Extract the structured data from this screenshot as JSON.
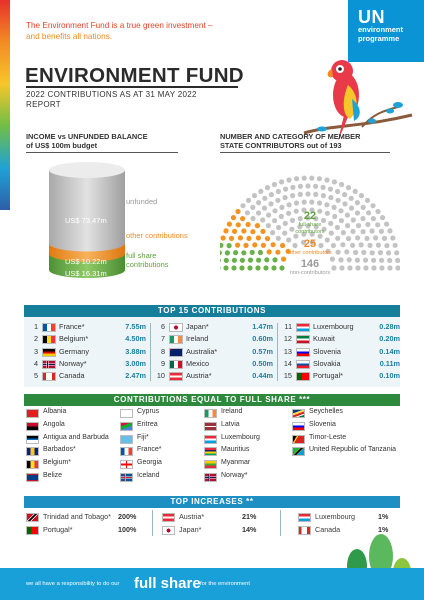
{
  "tagline": {
    "line1": "The Environment Fund is a true green investment –",
    "line2": "and benefits all nations."
  },
  "logo": {
    "un": "UN",
    "line1": "environment",
    "line2": "programme"
  },
  "title": "ENVIRONMENT FUND",
  "subtitle": {
    "line1": "2022 CONTRIBUTIONS AS AT 31 MAY 2022",
    "line2": "REPORT"
  },
  "income_chart": {
    "heading_line1": "INCOME vs UNFUNDED BALANCE",
    "heading_line2": "of US$ 100m budget",
    "unfunded_label": "unfunded",
    "other_label": "other contributions",
    "fullshare_label": "full share contributions",
    "unfunded_value": "US$ 73.47m",
    "other_value": "US$ 10.22m",
    "fullshare_value": "US$ 16.31m",
    "colors": {
      "unfunded": "#bdbdbd",
      "other": "#f39321",
      "fullshare": "#6ab04c"
    }
  },
  "member_chart": {
    "heading_line1": "NUMBER AND CATEGORY OF MEMBER",
    "heading_line2": "STATE CONTRIBUTORS out of 193",
    "fullshare_count": "22",
    "fullshare_label": "full share contributors",
    "other_count": "25",
    "other_label": "other contributors",
    "non_count": "146",
    "non_label": "non-contributors"
  },
  "chart_data": [
    {
      "type": "bar",
      "title": "INCOME vs UNFUNDED BALANCE of US$ 100m budget",
      "categories": [
        "unfunded",
        "other contributions",
        "full share contributions"
      ],
      "values": [
        73.47,
        10.22,
        16.31
      ],
      "unit": "US$ m"
    },
    {
      "type": "pie",
      "title": "NUMBER AND CATEGORY OF MEMBER STATE CONTRIBUTORS out of 193",
      "categories": [
        "full share contributors",
        "other contributors",
        "non-contributors"
      ],
      "values": [
        22,
        25,
        146
      ]
    }
  ],
  "top15": {
    "title": "TOP 15 CONTRIBUTIONS",
    "items": [
      {
        "rank": "1",
        "country": "France*",
        "amount": "7.55m"
      },
      {
        "rank": "2",
        "country": "Belgium*",
        "amount": "4.50m"
      },
      {
        "rank": "3",
        "country": "Germany",
        "amount": "3.88m"
      },
      {
        "rank": "4",
        "country": "Norway*",
        "amount": "3.00m"
      },
      {
        "rank": "5",
        "country": "Canada",
        "amount": "2.47m"
      },
      {
        "rank": "6",
        "country": "Japan*",
        "amount": "1.47m"
      },
      {
        "rank": "7",
        "country": "Ireland",
        "amount": "0.60m"
      },
      {
        "rank": "8",
        "country": "Australia*",
        "amount": "0.57m"
      },
      {
        "rank": "9",
        "country": "Mexico",
        "amount": "0.50m"
      },
      {
        "rank": "10",
        "country": "Austria*",
        "amount": "0.44m"
      },
      {
        "rank": "11",
        "country": "Luxembourg",
        "amount": "0.28m"
      },
      {
        "rank": "12",
        "country": "Kuwait",
        "amount": "0.20m"
      },
      {
        "rank": "13",
        "country": "Slovenia",
        "amount": "0.14m"
      },
      {
        "rank": "14",
        "country": "Slovakia",
        "amount": "0.11m"
      },
      {
        "rank": "15",
        "country": "Portugal*",
        "amount": "0.10m"
      }
    ]
  },
  "fullshare": {
    "title": "CONTRIBUTIONS EQUAL TO FULL SHARE ***",
    "col1": [
      "Albania",
      "Angola",
      "Antigua and Barbuda",
      "Barbados*",
      "Belgium*",
      "Belize"
    ],
    "col2": [
      "Cyprus",
      "Eritrea",
      "Fiji*",
      "France*",
      "Georgia",
      "Iceland"
    ],
    "col3": [
      "Ireland",
      "Latvia",
      "Luxembourg",
      "Mauritius",
      "Myanmar",
      "Norway*"
    ],
    "col4": [
      "Seychelles",
      "Slovenia",
      "Timor-Leste",
      "United Republic of Tanzania"
    ]
  },
  "increases": {
    "title": "TOP INCREASES **",
    "items": [
      {
        "country": "Trinidad and Tobago*",
        "pct": "200%"
      },
      {
        "country": "Portugal*",
        "pct": "100%"
      },
      {
        "country": "Austria*",
        "pct": "21%"
      },
      {
        "country": "Japan*",
        "pct": "14%"
      },
      {
        "country": "Luxembourg",
        "pct": "1%"
      },
      {
        "country": "Canada",
        "pct": "1%"
      }
    ]
  },
  "footer": {
    "pre": "we all have a responsibility to do our",
    "big": "full share",
    "post": "for the environment"
  },
  "colors": {
    "teal_band": "#157e9a",
    "green_band": "#2d8a3c",
    "blue_band": "#1d8fc3",
    "accent": "#1aa0d8"
  }
}
